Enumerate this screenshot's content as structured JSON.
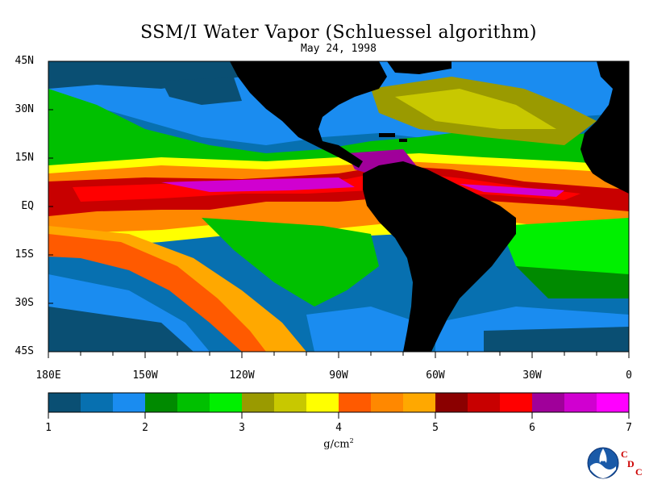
{
  "title": "SSM/I Water Vapor (Schluessel algorithm)",
  "subtitle": "May 24, 1998",
  "lat_labels": [
    "45N",
    "30N",
    "15N",
    "EQ",
    "15S",
    "30S",
    "45S"
  ],
  "lon_labels": [
    "180E",
    "150W",
    "120W",
    "90W",
    "60W",
    "30W",
    "0"
  ],
  "colorbar": {
    "min": 1,
    "max": 7,
    "tick_labels": [
      "1",
      "2",
      "3",
      "4",
      "5",
      "6",
      "7"
    ],
    "colors": [
      "#0a4f73",
      "#0770b0",
      "#1a8cf0",
      "#008a00",
      "#00c000",
      "#00f000",
      "#9a9a00",
      "#c8c800",
      "#ffff00",
      "#ff5a00",
      "#ff8800",
      "#ffa800",
      "#8b0000",
      "#c80000",
      "#ff0000",
      "#a0009a",
      "#d000d0",
      "#ff00ff"
    ],
    "units_base": "g/cm",
    "units_exp": "2"
  },
  "colors": {
    "land": "#000000",
    "frame": "#000000"
  },
  "logo": {
    "name": "noaa-logo",
    "text": "NOAA"
  },
  "org_mark": [
    "C",
    "D",
    "C"
  ]
}
